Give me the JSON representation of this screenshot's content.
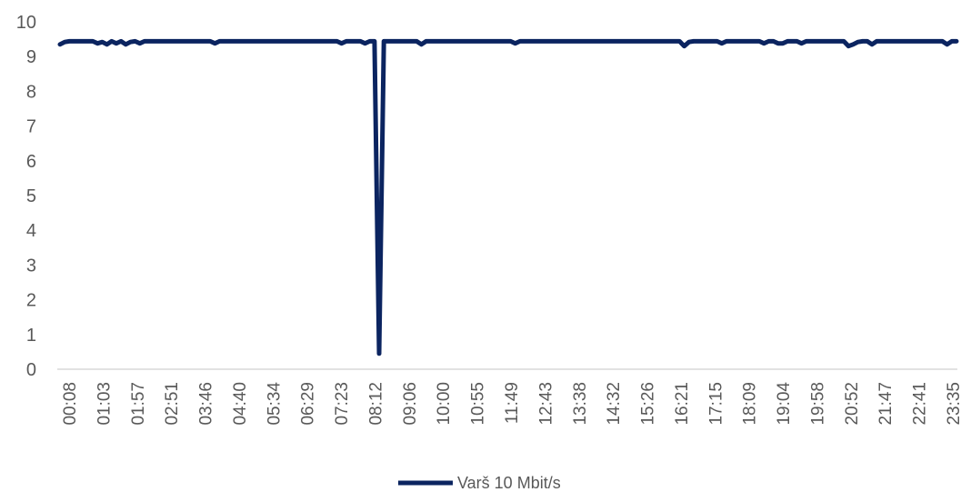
{
  "chart_data": {
    "type": "line",
    "title": "",
    "xlabel": "",
    "ylabel": "",
    "ylim": [
      0,
      10
    ],
    "yticks": [
      0,
      1,
      2,
      3,
      4,
      5,
      6,
      7,
      8,
      9,
      10
    ],
    "xtick_labels": [
      "00:08",
      "01:03",
      "01:57",
      "02:51",
      "03:46",
      "04:40",
      "05:34",
      "06:29",
      "07:23",
      "08:12",
      "09:06",
      "10:00",
      "10:55",
      "11:49",
      "12:43",
      "13:38",
      "14:32",
      "15:26",
      "16:21",
      "17:15",
      "18:09",
      "19:04",
      "19:58",
      "20:52",
      "21:47",
      "22:41",
      "23:35"
    ],
    "legend_position": "bottom",
    "grid": false,
    "series": [
      {
        "name": "Varš 10 Mbit/s",
        "color": "#0b2460",
        "values": [
          9.35,
          9.42,
          9.44,
          9.44,
          9.44,
          9.44,
          9.44,
          9.44,
          9.38,
          9.42,
          9.35,
          9.44,
          9.38,
          9.44,
          9.35,
          9.42,
          9.44,
          9.38,
          9.44,
          9.44,
          9.44,
          9.44,
          9.44,
          9.44,
          9.44,
          9.44,
          9.44,
          9.44,
          9.44,
          9.44,
          9.44,
          9.44,
          9.44,
          9.38,
          9.44,
          9.44,
          9.44,
          9.44,
          9.44,
          9.44,
          9.44,
          9.44,
          9.44,
          9.44,
          9.44,
          9.44,
          9.44,
          9.44,
          9.44,
          9.44,
          9.44,
          9.44,
          9.44,
          9.44,
          9.44,
          9.44,
          9.44,
          9.44,
          9.44,
          9.44,
          9.38,
          9.44,
          9.44,
          9.44,
          9.44,
          9.38,
          9.44,
          9.44,
          0.45,
          9.44,
          9.44,
          9.44,
          9.44,
          9.44,
          9.44,
          9.44,
          9.44,
          9.35,
          9.44,
          9.44,
          9.44,
          9.44,
          9.44,
          9.44,
          9.44,
          9.44,
          9.44,
          9.44,
          9.44,
          9.44,
          9.44,
          9.44,
          9.44,
          9.44,
          9.44,
          9.44,
          9.44,
          9.38,
          9.44,
          9.44,
          9.44,
          9.44,
          9.44,
          9.44,
          9.44,
          9.44,
          9.44,
          9.44,
          9.44,
          9.44,
          9.44,
          9.44,
          9.44,
          9.44,
          9.44,
          9.44,
          9.44,
          9.44,
          9.44,
          9.44,
          9.44,
          9.44,
          9.44,
          9.44,
          9.44,
          9.44,
          9.44,
          9.44,
          9.44,
          9.44,
          9.44,
          9.44,
          9.44,
          9.3,
          9.42,
          9.44,
          9.44,
          9.44,
          9.44,
          9.44,
          9.44,
          9.38,
          9.44,
          9.44,
          9.44,
          9.44,
          9.44,
          9.44,
          9.44,
          9.44,
          9.38,
          9.44,
          9.44,
          9.38,
          9.38,
          9.44,
          9.44,
          9.44,
          9.38,
          9.44,
          9.44,
          9.44,
          9.44,
          9.44,
          9.44,
          9.44,
          9.44,
          9.44,
          9.3,
          9.35,
          9.42,
          9.44,
          9.44,
          9.35,
          9.44,
          9.44,
          9.44,
          9.44,
          9.44,
          9.44,
          9.44,
          9.44,
          9.44,
          9.44,
          9.44,
          9.44,
          9.44,
          9.44,
          9.44,
          9.35,
          9.44,
          9.44
        ]
      }
    ]
  }
}
